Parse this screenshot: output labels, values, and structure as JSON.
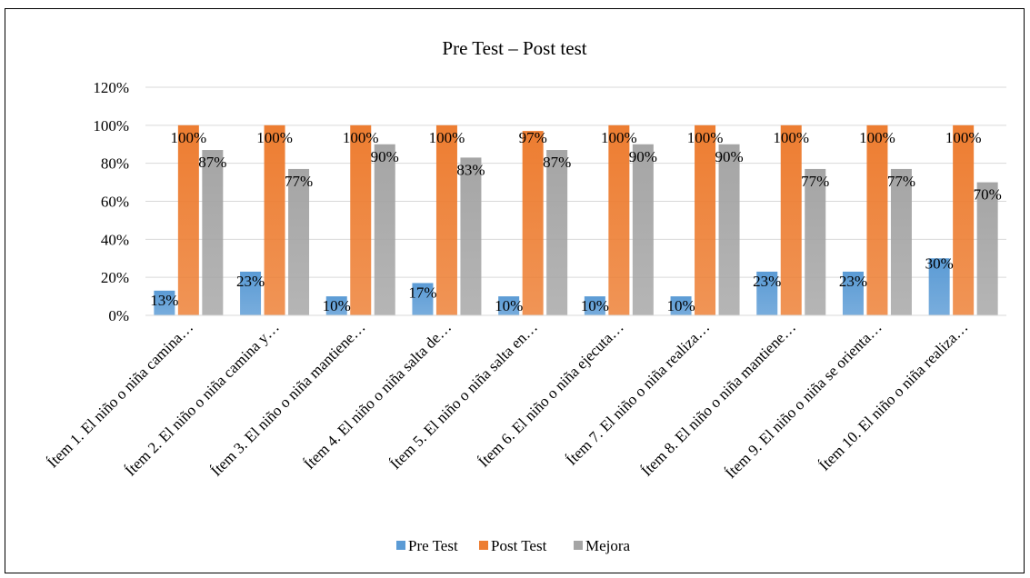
{
  "chart_data": {
    "type": "bar",
    "title": "Pre Test – Post test",
    "xlabel": "",
    "ylabel": "",
    "ylim": [
      0,
      1.2
    ],
    "yticks": [
      0,
      0.2,
      0.4,
      0.6,
      0.8,
      1.0,
      1.2
    ],
    "ytick_labels": [
      "0%",
      "20%",
      "40%",
      "60%",
      "80%",
      "100%",
      "120%"
    ],
    "grid": true,
    "legend_position": "bottom",
    "categories": [
      "Ítem 1. El niño o niña camina…",
      "Ítem 2. El niño o niña camina y…",
      "Ítem 3. El niño o niña mantiene…",
      "Ítem 4. El niño o niña salta de…",
      "Ítem 5. El niño o niña salta en…",
      "Ítem 6. El niño o niña ejecuta…",
      "Ítem 7. El niño o niña realiza…",
      "Ítem 8. El niño o niña mantiene…",
      "Ítem 9. El niño o niña se orienta…",
      "Ítem 10. El niño o niña realiza…"
    ],
    "series": [
      {
        "name": "Pre Test",
        "color": "#5b9bd5",
        "values": [
          0.13,
          0.23,
          0.1,
          0.17,
          0.1,
          0.1,
          0.1,
          0.23,
          0.23,
          0.3
        ],
        "labels": [
          "13%",
          "23%",
          "10%",
          "17%",
          "10%",
          "10%",
          "10%",
          "23%",
          "23%",
          "30%"
        ]
      },
      {
        "name": "Post Test",
        "color": "#ed7d31",
        "values": [
          1.0,
          1.0,
          1.0,
          1.0,
          0.97,
          1.0,
          1.0,
          1.0,
          1.0,
          1.0
        ],
        "labels": [
          "100%",
          "100%",
          "100%",
          "100%",
          "97%",
          "100%",
          "100%",
          "100%",
          "100%",
          "100%"
        ]
      },
      {
        "name": "Mejora",
        "color": "#a5a5a5",
        "values": [
          0.87,
          0.77,
          0.9,
          0.83,
          0.87,
          0.9,
          0.9,
          0.77,
          0.77,
          0.7
        ],
        "labels": [
          "87%",
          "77%",
          "90%",
          "83%",
          "87%",
          "90%",
          "90%",
          "77%",
          "77%",
          "70%"
        ]
      }
    ]
  }
}
